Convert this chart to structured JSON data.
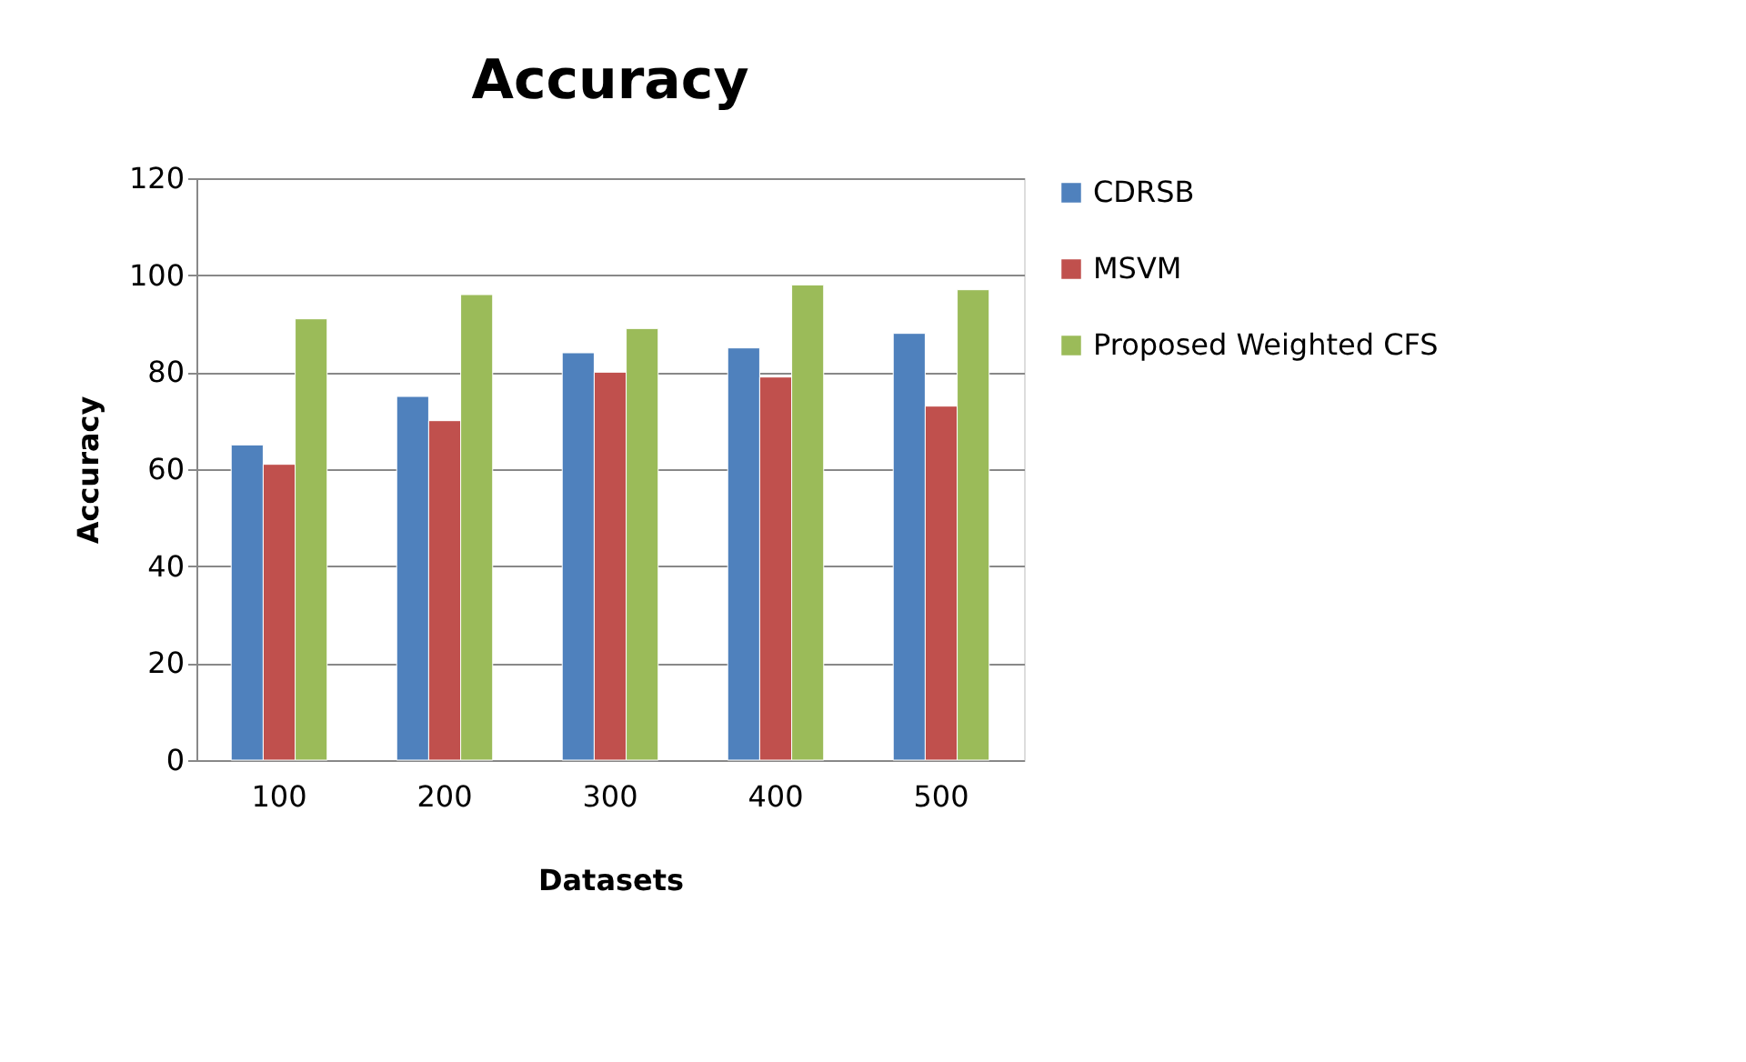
{
  "chart_data": {
    "type": "bar",
    "title": "Accuracy",
    "xlabel": "Datasets",
    "ylabel": "Accuracy",
    "categories": [
      "100",
      "200",
      "300",
      "400",
      "500"
    ],
    "series": [
      {
        "name": "CDRSB",
        "color": "#4f81bd",
        "values": [
          65,
          75,
          84,
          85,
          88
        ]
      },
      {
        "name": "MSVM",
        "color": "#c0504d",
        "values": [
          61,
          70,
          80,
          79,
          73
        ]
      },
      {
        "name": "Proposed Weighted CFS",
        "color": "#9bbb59",
        "values": [
          91,
          96,
          89,
          98,
          97
        ]
      }
    ],
    "ylim": [
      0,
      120
    ],
    "yticks": [
      0,
      20,
      40,
      60,
      80,
      100,
      120
    ],
    "grid": "y",
    "legend": "right"
  }
}
